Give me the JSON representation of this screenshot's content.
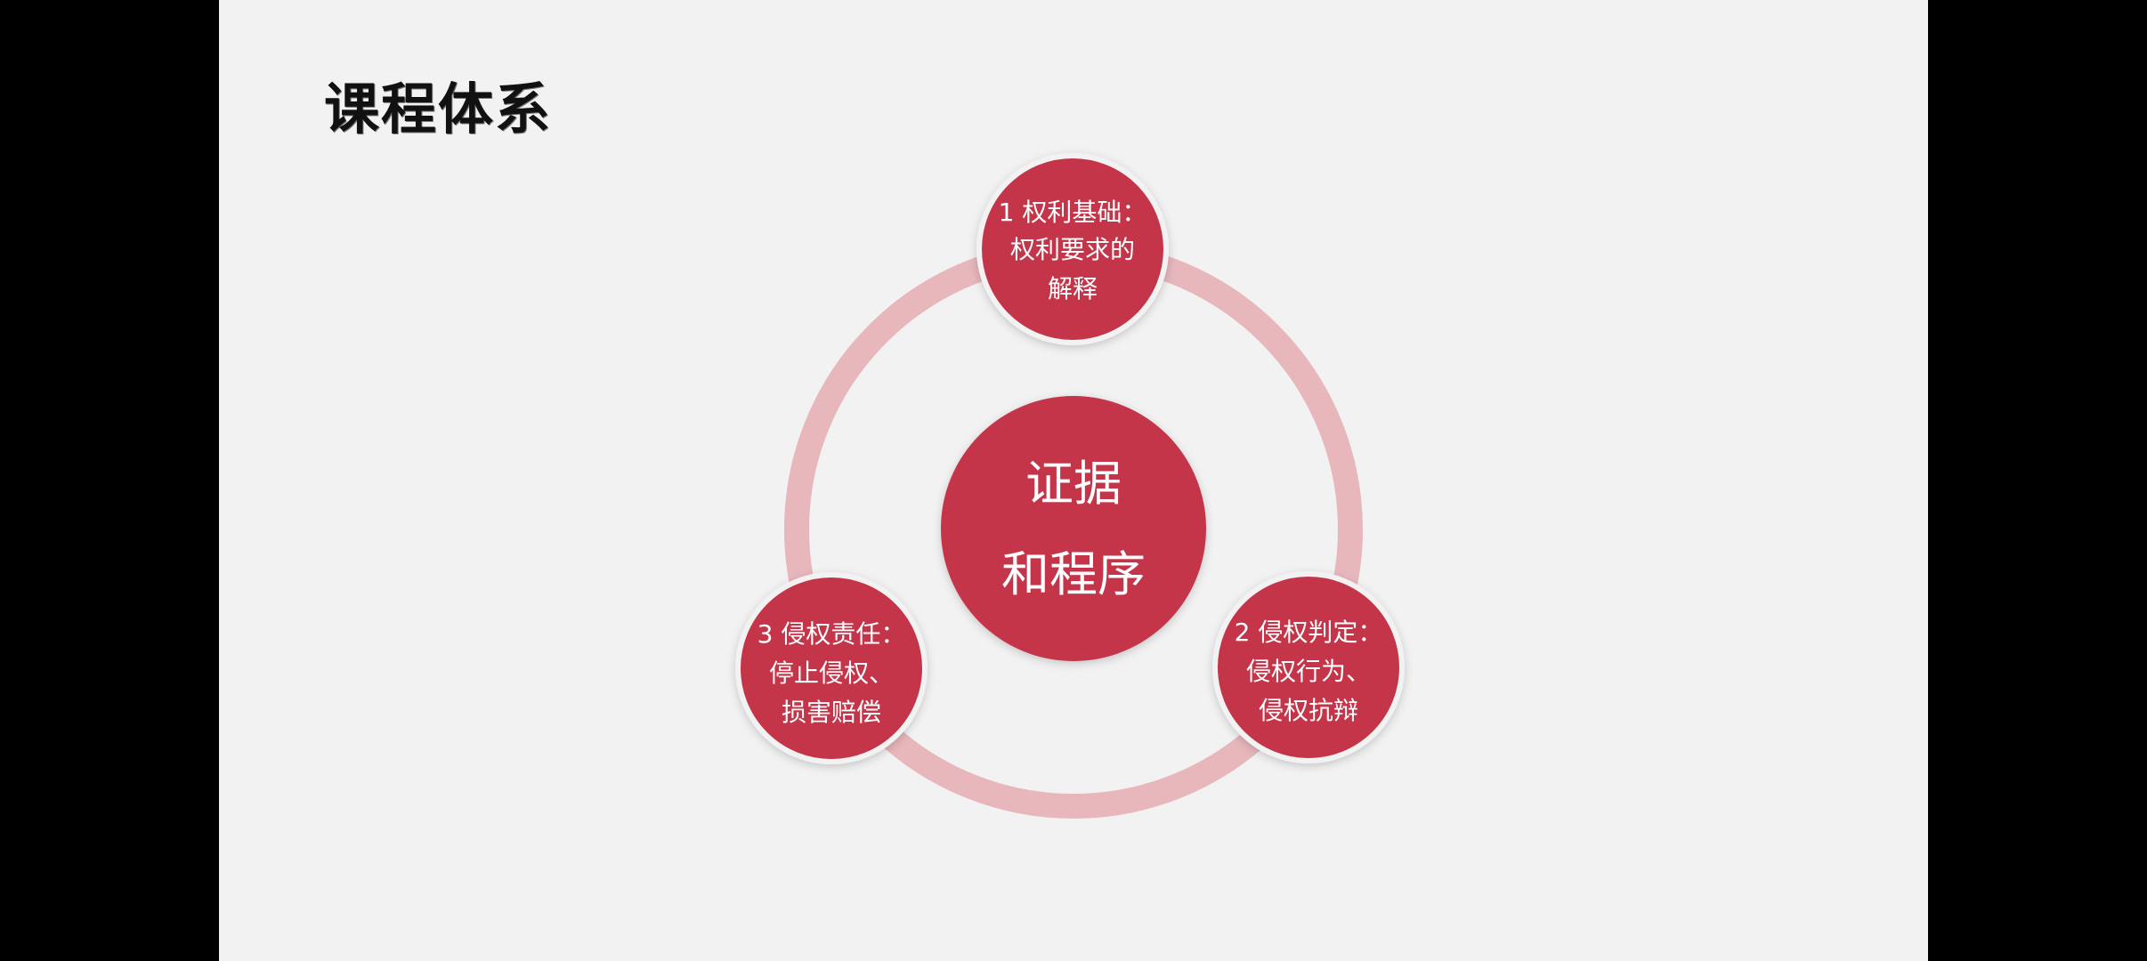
{
  "slide": {
    "title": "课程体系",
    "background_color": "#f2f2f2"
  },
  "diagram": {
    "type": "cycle",
    "ring_color": "#e9b8bd",
    "node_color": "#c4354a",
    "center": {
      "lines": [
        "证据",
        "和程序"
      ]
    },
    "nodes": [
      {
        "id": "node-1",
        "lines": [
          "1 权利基础：",
          "权利要求的",
          "解释"
        ]
      },
      {
        "id": "node-2",
        "lines": [
          "2 侵权判定：",
          "侵权行为、",
          "侵权抗辩"
        ]
      },
      {
        "id": "node-3",
        "lines": [
          "3 侵权责任：",
          "停止侵权、",
          "损害赔偿"
        ]
      }
    ]
  }
}
